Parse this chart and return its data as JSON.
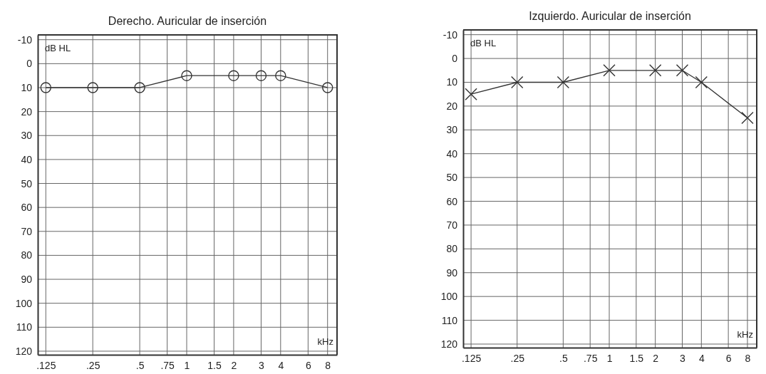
{
  "chart_data": [
    {
      "type": "line",
      "title": "Derecho. Auricular de inserción",
      "xlabel": "kHz",
      "ylabel": "dB HL",
      "log": "x",
      "x": [
        0.125,
        0.25,
        0.5,
        1,
        2,
        3,
        4,
        8
      ],
      "series": [
        {
          "color": "#333333",
          "values": [
            10,
            10,
            10,
            5,
            5,
            5,
            5,
            10
          ]
        }
      ],
      "marker": "circle",
      "line_style": "solid",
      "grid": true,
      "xlim": [
        0.111,
        9.2
      ],
      "ylim": [
        121.5,
        -12
      ],
      "xticks": [
        {
          "value": 0.125,
          "label": ".125"
        },
        {
          "value": 0.25,
          "label": ".25"
        },
        {
          "value": 0.5,
          "label": ".5"
        },
        {
          "value": 0.75,
          "label": ".75"
        },
        1,
        1.5,
        2,
        3,
        4,
        6,
        8
      ],
      "yticks": [
        -10,
        0,
        10,
        20,
        30,
        40,
        50,
        60,
        70,
        80,
        90,
        100,
        110,
        120
      ]
    },
    {
      "type": "line",
      "title": "Izquierdo. Auricular de inserción",
      "xlabel": "kHz",
      "ylabel": "dB HL",
      "log": "x",
      "x": [
        0.125,
        0.25,
        0.5,
        1,
        2,
        3,
        4,
        8
      ],
      "series": [
        {
          "color": "#333333",
          "values": [
            15,
            10,
            10,
            5,
            5,
            5,
            10,
            25
          ]
        }
      ],
      "marker": "cross",
      "line_style": "solid",
      "grid": true,
      "xlim": [
        0.111,
        9.2
      ],
      "ylim": [
        121.5,
        -12
      ],
      "xticks": [
        {
          "value": 0.125,
          "label": ".125"
        },
        {
          "value": 0.25,
          "label": ".25"
        },
        {
          "value": 0.5,
          "label": ".5"
        },
        {
          "value": 0.75,
          "label": ".75"
        },
        1,
        1.5,
        2,
        3,
        4,
        6,
        8
      ],
      "yticks": [
        -10,
        0,
        10,
        20,
        30,
        40,
        50,
        60,
        70,
        80,
        90,
        100,
        110,
        120
      ]
    }
  ]
}
